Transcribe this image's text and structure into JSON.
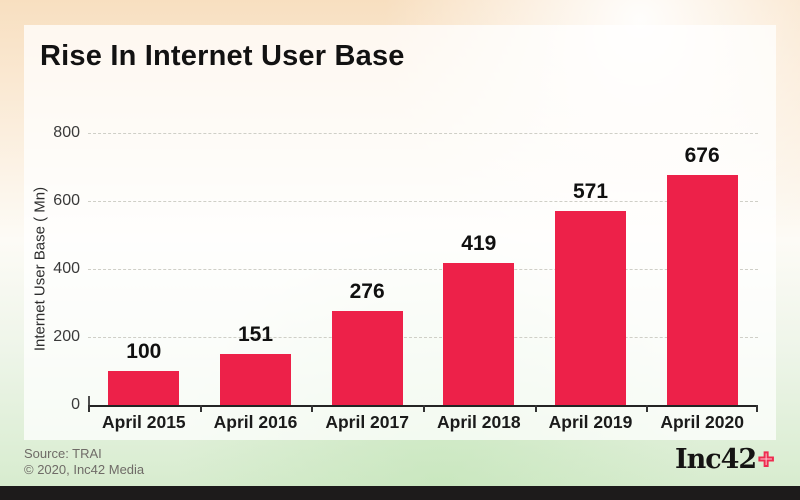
{
  "title": "Rise In Internet User Base",
  "footer": {
    "source": "Source: TRAI",
    "copyright": "© 2020, Inc42 Media"
  },
  "logo": {
    "wordmark": "Inc42",
    "plus": "+"
  },
  "chart_data": {
    "type": "bar",
    "categories": [
      "April 2015",
      "April 2016",
      "April 2017",
      "April 2018",
      "April 2019",
      "April 2020"
    ],
    "values": [
      100,
      151,
      276,
      419,
      571,
      676
    ],
    "title": "Rise In Internet User Base",
    "xlabel": "",
    "ylabel": "Internet User Base ( Mn)",
    "ylim": [
      0,
      800
    ],
    "yticks": [
      0,
      200,
      400,
      600,
      800
    ],
    "grid": "horizontal-dashed",
    "legend": "none",
    "value_labels": true,
    "bar_color": "#ED2149"
  },
  "colors": {
    "bar": "#ED2149",
    "accent_plus": "#EE2C50",
    "bottom_bar": "#1D1B1B",
    "background_top": "#F8DFC0",
    "background_bottom": "#D5EBCC",
    "card": "rgba(255,255,255,0.74)"
  }
}
